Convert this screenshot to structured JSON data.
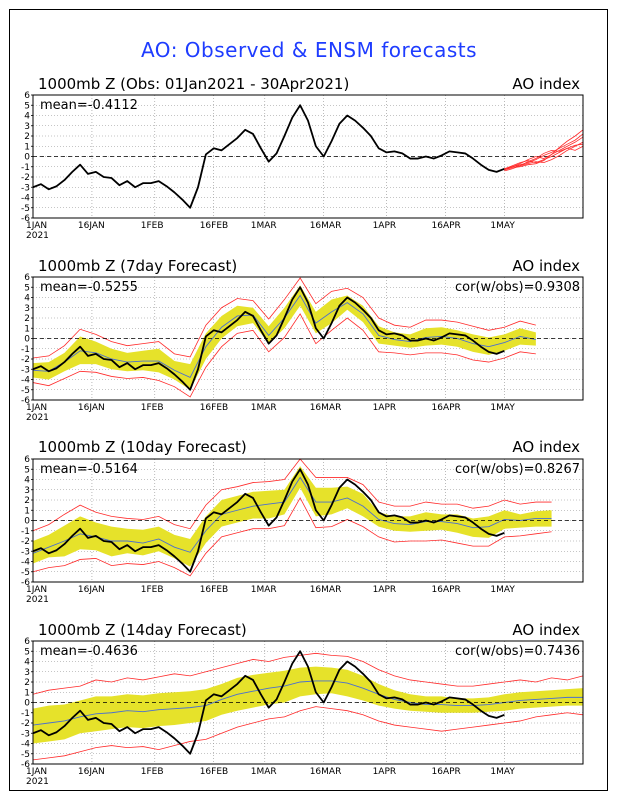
{
  "title": "AO: Observed & ENSM forecasts",
  "panels": [
    {
      "title": "1000mb Z (Obs: 01Jan2021 - 30Apr2021)",
      "right_label": "AO index",
      "mean_label": "mean=-0.4112",
      "cor_label": ""
    },
    {
      "title": "1000mb Z (7day Forecast)",
      "right_label": "AO index",
      "mean_label": "mean=-0.5255",
      "cor_label": "cor(w/obs)=0.9308"
    },
    {
      "title": "1000mb Z (10day Forecast)",
      "right_label": "AO index",
      "mean_label": "mean=-0.5164",
      "cor_label": "cor(w/obs)=0.8267"
    },
    {
      "title": "1000mb Z (14day Forecast)",
      "right_label": "AO index",
      "mean_label": "mean=-0.4636",
      "cor_label": "cor(w/obs)=0.7436"
    }
  ],
  "colors": {
    "title": "#1e3cff",
    "observed": "#000000",
    "ensemble_mean": "#4a6fd0",
    "spread_band": "#e6e22a",
    "extremes": "#ff2a2a",
    "grid": "#8c8c8c"
  },
  "chart_data": [
    {
      "type": "line",
      "ylim": [
        -6,
        6
      ],
      "yticks": [
        "6",
        "5",
        "4",
        "3",
        "2",
        "1",
        "0",
        "-1",
        "-2",
        "-3",
        "-4",
        "-5",
        "-6"
      ],
      "xticks": [
        {
          "label": "1JAN",
          "day": 0,
          "year": "2021"
        },
        {
          "label": "16JAN",
          "day": 15
        },
        {
          "label": "1FEB",
          "day": 31
        },
        {
          "label": "16FEB",
          "day": 46
        },
        {
          "label": "1MAR",
          "day": 59
        },
        {
          "label": "16MAR",
          "day": 74
        },
        {
          "label": "1APR",
          "day": 90
        },
        {
          "label": "16APR",
          "day": 105
        },
        {
          "label": "1MAY",
          "day": 120
        }
      ],
      "xlim": [
        0,
        140
      ],
      "grid": true,
      "series": [
        {
          "role": "observed",
          "x": [
            0,
            2,
            4,
            6,
            8,
            10,
            12,
            14,
            16,
            18,
            20,
            22,
            24,
            26,
            28,
            30,
            32,
            34,
            36,
            38,
            40,
            42,
            44,
            46,
            48,
            50,
            52,
            54,
            56,
            58,
            60,
            62,
            64,
            66,
            68,
            70,
            72,
            74,
            76,
            78,
            80,
            82,
            84,
            86,
            88,
            90,
            92,
            94,
            96,
            98,
            100,
            102,
            104,
            106,
            108,
            110,
            112,
            114,
            116,
            118,
            120
          ],
          "y": [
            -3.0,
            -2.7,
            -3.2,
            -2.9,
            -2.3,
            -1.5,
            -0.8,
            -1.7,
            -1.5,
            -2.0,
            -2.1,
            -2.8,
            -2.4,
            -3.0,
            -2.6,
            -2.6,
            -2.4,
            -2.9,
            -3.5,
            -4.2,
            -5.0,
            -3.0,
            0.2,
            0.8,
            0.6,
            1.2,
            1.8,
            2.6,
            2.2,
            0.8,
            -0.5,
            0.3,
            2.0,
            3.8,
            5.0,
            3.5,
            1.0,
            0.0,
            1.5,
            3.2,
            4.0,
            3.5,
            2.8,
            2.0,
            0.8,
            0.4,
            0.5,
            0.3,
            -0.2,
            -0.2,
            0.0,
            -0.2,
            0.1,
            0.5,
            0.4,
            0.3,
            -0.2,
            -0.8,
            -1.3,
            -1.5,
            -1.2
          ]
        },
        {
          "role": "forecast-members",
          "x": [
            120,
            122,
            124,
            126,
            128,
            130,
            132,
            134,
            136,
            138,
            140
          ],
          "members": [
            [
              -1.3,
              -1.0,
              -0.8,
              -0.6,
              -0.3,
              0.1,
              0.4,
              0.8,
              1.2,
              1.6,
              2.2
            ],
            [
              -1.2,
              -1.0,
              -0.7,
              -0.3,
              0.0,
              -0.2,
              0.2,
              0.6,
              1.0,
              1.4,
              1.9
            ],
            [
              -1.4,
              -1.2,
              -0.9,
              -0.7,
              -0.5,
              -0.6,
              -0.3,
              0.1,
              0.6,
              1.0,
              1.4
            ],
            [
              -1.2,
              -0.9,
              -0.6,
              -0.4,
              -0.6,
              -0.3,
              0.0,
              0.4,
              0.8,
              0.6,
              1.0
            ],
            [
              -1.3,
              -1.1,
              -1.0,
              -0.8,
              -0.7,
              -0.4,
              0.2,
              0.9,
              1.5,
              2.0,
              2.6
            ],
            [
              -1.2,
              -1.0,
              -0.9,
              -0.5,
              -0.2,
              0.3,
              0.6,
              0.5,
              0.8,
              1.1,
              1.2
            ]
          ]
        }
      ]
    },
    {
      "type": "line",
      "lead_days": 7,
      "ylim": [
        -6,
        6
      ],
      "xlim": [
        0,
        140
      ],
      "grid": true,
      "band": {
        "x": [
          0,
          4,
          8,
          12,
          16,
          20,
          24,
          28,
          32,
          36,
          40,
          44,
          48,
          52,
          56,
          60,
          64,
          68,
          72,
          76,
          80,
          84,
          88,
          92,
          96,
          100,
          104,
          108,
          112,
          116,
          120,
          124,
          128
        ],
        "lower": [
          -3.8,
          -4.0,
          -3.2,
          -2.5,
          -2.5,
          -3.0,
          -3.2,
          -3.1,
          -3.3,
          -4.0,
          -5.0,
          -2.0,
          0.0,
          1.2,
          1.5,
          -0.5,
          1.0,
          3.2,
          0.5,
          1.5,
          2.8,
          1.6,
          -0.5,
          -0.7,
          -0.9,
          -0.7,
          -0.6,
          -0.8,
          -1.3,
          -1.6,
          -1.2,
          -0.6,
          -0.7
        ],
        "upper": [
          -2.4,
          -2.3,
          -1.4,
          0.2,
          -0.3,
          -1.0,
          -1.4,
          -1.2,
          -1.0,
          -2.2,
          -2.5,
          0.5,
          2.2,
          3.2,
          3.0,
          1.2,
          3.0,
          5.2,
          2.6,
          3.8,
          4.2,
          3.2,
          1.2,
          0.6,
          0.4,
          1.0,
          1.1,
          0.8,
          0.4,
          0.1,
          0.4,
          1.0,
          0.6
        ]
      },
      "extremes": {
        "x": [
          0,
          4,
          8,
          12,
          16,
          20,
          24,
          28,
          32,
          36,
          40,
          44,
          48,
          52,
          56,
          60,
          64,
          68,
          72,
          76,
          80,
          84,
          88,
          92,
          96,
          100,
          104,
          108,
          112,
          116,
          120,
          124,
          128
        ],
        "lower": [
          -4.3,
          -4.6,
          -3.9,
          -3.2,
          -3.3,
          -3.7,
          -3.9,
          -3.8,
          -4.1,
          -4.7,
          -5.7,
          -2.8,
          -0.8,
          0.5,
          0.8,
          -1.3,
          0.1,
          2.4,
          -0.5,
          0.8,
          2.0,
          0.8,
          -1.3,
          -1.4,
          -1.6,
          -1.4,
          -1.4,
          -1.6,
          -2.1,
          -2.3,
          -1.9,
          -1.3,
          -1.5
        ],
        "upper": [
          -1.9,
          -1.7,
          -0.7,
          0.9,
          0.4,
          -0.3,
          -0.7,
          -0.5,
          -0.3,
          -1.5,
          -1.8,
          1.3,
          3.0,
          3.9,
          3.7,
          1.9,
          3.8,
          5.9,
          3.4,
          4.6,
          4.9,
          4.0,
          2.0,
          1.3,
          1.1,
          1.8,
          1.8,
          1.6,
          1.2,
          0.8,
          1.1,
          1.7,
          1.3
        ]
      },
      "mean": {
        "x": [
          0,
          4,
          8,
          12,
          16,
          20,
          24,
          28,
          32,
          36,
          40,
          44,
          48,
          52,
          56,
          60,
          64,
          68,
          72,
          76,
          80,
          84,
          88,
          92,
          96,
          100,
          104,
          108,
          112,
          116,
          120,
          124,
          128
        ],
        "y": [
          -3.1,
          -3.2,
          -2.3,
          -1.2,
          -1.4,
          -2.0,
          -2.3,
          -2.2,
          -2.2,
          -3.1,
          -3.8,
          -0.8,
          1.1,
          2.2,
          2.3,
          0.3,
          2.0,
          4.2,
          1.5,
          2.6,
          3.5,
          2.4,
          0.3,
          -0.1,
          -0.3,
          0.1,
          0.2,
          0.0,
          -0.5,
          -0.8,
          -0.4,
          0.2,
          -0.1
        ]
      },
      "observed_ref": 0
    },
    {
      "type": "line",
      "lead_days": 10,
      "ylim": [
        -6,
        6
      ],
      "xlim": [
        0,
        140
      ],
      "grid": true,
      "band": {
        "x": [
          0,
          4,
          8,
          12,
          16,
          20,
          24,
          28,
          32,
          36,
          40,
          44,
          48,
          52,
          56,
          60,
          64,
          68,
          72,
          76,
          80,
          84,
          88,
          92,
          96,
          100,
          104,
          108,
          112,
          116,
          120,
          124,
          128,
          132
        ],
        "lower": [
          -4.2,
          -3.6,
          -3.5,
          -2.8,
          -2.9,
          -3.5,
          -3.2,
          -3.4,
          -3.0,
          -3.7,
          -4.5,
          -2.2,
          -0.6,
          -0.2,
          0.2,
          0.2,
          0.6,
          3.2,
          0.4,
          0.6,
          1.2,
          0.4,
          -0.6,
          -1.0,
          -1.1,
          -1.0,
          -0.9,
          -1.2,
          -1.6,
          -1.7,
          -0.8,
          -0.7,
          -0.6,
          -0.6
        ],
        "upper": [
          -2.0,
          -1.4,
          -0.5,
          0.4,
          -0.2,
          -0.6,
          -0.8,
          -0.9,
          -0.6,
          -1.4,
          -1.8,
          0.4,
          2.0,
          2.4,
          2.8,
          2.9,
          3.0,
          5.3,
          3.2,
          3.2,
          3.3,
          2.6,
          0.8,
          0.4,
          0.4,
          0.8,
          0.6,
          0.6,
          0.2,
          0.4,
          1.0,
          0.6,
          0.9,
          1.0
        ]
      },
      "extremes": {
        "x": [
          0,
          4,
          8,
          12,
          16,
          20,
          24,
          28,
          32,
          36,
          40,
          44,
          48,
          52,
          56,
          60,
          64,
          68,
          72,
          76,
          80,
          84,
          88,
          92,
          96,
          100,
          104,
          108,
          112,
          116,
          120,
          124,
          128,
          132
        ],
        "lower": [
          -5.0,
          -4.6,
          -4.4,
          -3.8,
          -3.7,
          -4.4,
          -4.2,
          -4.3,
          -4.0,
          -4.6,
          -5.4,
          -3.2,
          -1.6,
          -1.2,
          -0.8,
          -0.8,
          -0.5,
          2.2,
          -0.7,
          -0.6,
          0.1,
          -0.6,
          -1.6,
          -2.1,
          -2.0,
          -2.0,
          -1.9,
          -2.2,
          -2.5,
          -2.5,
          -1.6,
          -1.5,
          -1.3,
          -1.1
        ],
        "upper": [
          -1.0,
          -0.4,
          0.6,
          1.5,
          0.8,
          0.4,
          0.2,
          0.1,
          0.4,
          -0.4,
          -0.8,
          1.5,
          3.0,
          3.3,
          3.7,
          3.8,
          4.0,
          6.0,
          4.2,
          4.2,
          4.2,
          3.5,
          1.8,
          1.4,
          1.4,
          1.8,
          1.6,
          1.6,
          1.2,
          1.4,
          2.0,
          1.6,
          1.8,
          1.8
        ]
      },
      "mean": {
        "x": [
          0,
          4,
          8,
          12,
          16,
          20,
          24,
          28,
          32,
          36,
          40,
          44,
          48,
          52,
          56,
          60,
          64,
          68,
          72,
          76,
          80,
          84,
          88,
          92,
          96,
          100,
          104,
          108,
          112,
          116,
          120,
          124,
          128,
          132
        ],
        "y": [
          -3.2,
          -2.6,
          -2.0,
          -1.3,
          -1.6,
          -2.0,
          -2.0,
          -2.2,
          -1.8,
          -2.6,
          -3.1,
          -1.0,
          0.6,
          1.0,
          1.4,
          1.6,
          1.8,
          4.2,
          1.8,
          1.8,
          2.2,
          1.4,
          0.1,
          -0.3,
          -0.4,
          -0.1,
          -0.1,
          -0.3,
          -0.7,
          -0.6,
          0.1,
          0.0,
          0.2,
          0.2
        ]
      },
      "observed_ref": 0
    },
    {
      "type": "line",
      "lead_days": 14,
      "ylim": [
        -6,
        6
      ],
      "xlim": [
        0,
        140
      ],
      "grid": true,
      "band": {
        "x": [
          0,
          4,
          8,
          12,
          16,
          20,
          24,
          28,
          32,
          36,
          40,
          44,
          48,
          52,
          56,
          60,
          64,
          68,
          72,
          76,
          80,
          84,
          88,
          92,
          96,
          100,
          104,
          108,
          112,
          116,
          120,
          124,
          128,
          132,
          136,
          140
        ],
        "lower": [
          -4.0,
          -3.8,
          -3.6,
          -3.0,
          -2.8,
          -2.6,
          -2.4,
          -2.5,
          -2.3,
          -2.2,
          -2.0,
          -1.8,
          -1.2,
          -0.8,
          -0.5,
          -0.2,
          0.0,
          0.6,
          0.8,
          0.9,
          0.6,
          0.2,
          -0.3,
          -0.6,
          -0.8,
          -0.9,
          -1.0,
          -1.0,
          -1.0,
          -0.9,
          -0.8,
          -0.6,
          -0.5,
          -0.4,
          -0.3,
          -0.3
        ],
        "upper": [
          -0.6,
          -0.3,
          -0.2,
          0.2,
          0.6,
          0.6,
          0.8,
          0.7,
          0.9,
          1.0,
          1.1,
          1.3,
          1.8,
          2.4,
          2.7,
          2.9,
          3.1,
          3.4,
          3.5,
          3.4,
          3.2,
          2.6,
          1.8,
          1.2,
          0.8,
          0.6,
          0.6,
          0.4,
          0.4,
          0.5,
          0.8,
          1.0,
          1.1,
          1.2,
          1.3,
          1.4
        ]
      },
      "extremes": {
        "x": [
          0,
          4,
          8,
          12,
          16,
          20,
          24,
          28,
          32,
          36,
          40,
          44,
          48,
          52,
          56,
          60,
          64,
          68,
          72,
          76,
          80,
          84,
          88,
          92,
          96,
          100,
          104,
          108,
          112,
          116,
          120,
          124,
          128,
          132,
          136,
          140
        ],
        "lower": [
          -5.6,
          -5.4,
          -5.2,
          -4.8,
          -4.4,
          -4.2,
          -4.4,
          -4.3,
          -4.6,
          -4.2,
          -3.8,
          -3.6,
          -3.0,
          -2.4,
          -2.0,
          -1.6,
          -1.4,
          -0.8,
          -0.4,
          -0.6,
          -0.8,
          -1.2,
          -1.8,
          -2.2,
          -2.4,
          -2.6,
          -2.8,
          -2.6,
          -2.4,
          -2.2,
          -2.0,
          -1.8,
          -1.4,
          -1.2,
          -1.0,
          -1.2
        ],
        "upper": [
          0.8,
          1.2,
          1.4,
          1.6,
          2.2,
          2.0,
          2.4,
          2.2,
          2.5,
          2.8,
          2.6,
          3.0,
          3.4,
          3.8,
          4.2,
          4.0,
          4.4,
          4.6,
          4.8,
          4.6,
          4.5,
          4.0,
          3.2,
          2.6,
          2.2,
          2.0,
          1.8,
          1.6,
          1.6,
          1.8,
          2.0,
          2.2,
          2.0,
          2.4,
          2.2,
          2.6
        ]
      },
      "mean": {
        "x": [
          0,
          4,
          8,
          12,
          16,
          20,
          24,
          28,
          32,
          36,
          40,
          44,
          48,
          52,
          56,
          60,
          64,
          68,
          72,
          76,
          80,
          84,
          88,
          92,
          96,
          100,
          104,
          108,
          112,
          116,
          120,
          124,
          128,
          132,
          136,
          140
        ],
        "y": [
          -2.2,
          -2.0,
          -1.8,
          -1.4,
          -1.1,
          -1.0,
          -0.8,
          -0.9,
          -0.7,
          -0.6,
          -0.5,
          -0.3,
          0.3,
          0.8,
          1.1,
          1.4,
          1.6,
          2.0,
          2.1,
          2.1,
          1.9,
          1.4,
          0.8,
          0.3,
          0.0,
          -0.2,
          -0.2,
          -0.3,
          -0.3,
          -0.2,
          0.0,
          0.2,
          0.3,
          0.4,
          0.5,
          0.5
        ]
      },
      "observed_ref": 0
    }
  ]
}
